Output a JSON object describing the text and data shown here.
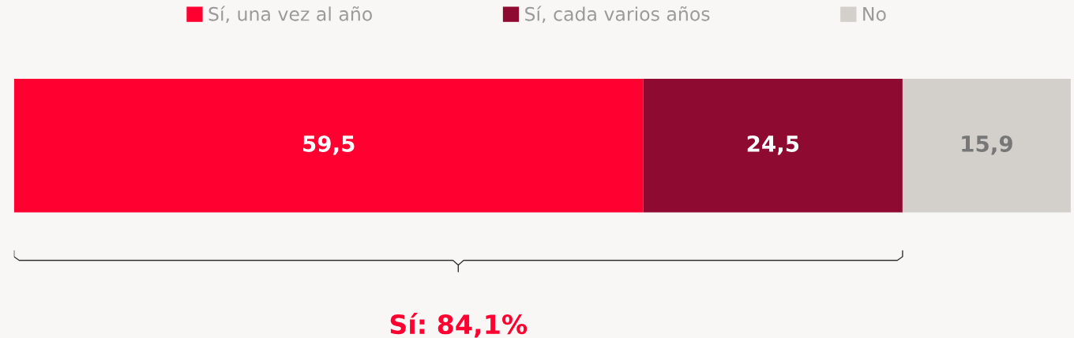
{
  "chart_data": {
    "type": "bar",
    "orientation": "horizontal",
    "stacked": true,
    "categories": [
      null
    ],
    "series": [
      {
        "name": "Sí, una vez al año",
        "color": "#ff0030",
        "values": [
          59.5
        ],
        "value_labels": [
          "59,5"
        ]
      },
      {
        "name": "Sí, cada varios años",
        "color": "#8e0a30",
        "values": [
          24.5
        ],
        "value_labels": [
          "24,5"
        ]
      },
      {
        "name": "No",
        "color": "#d3cfcb",
        "values": [
          15.9
        ],
        "value_labels": [
          "15,9"
        ]
      }
    ],
    "legend": "top",
    "annotations": [
      "Sí: 84,1%"
    ]
  }
}
